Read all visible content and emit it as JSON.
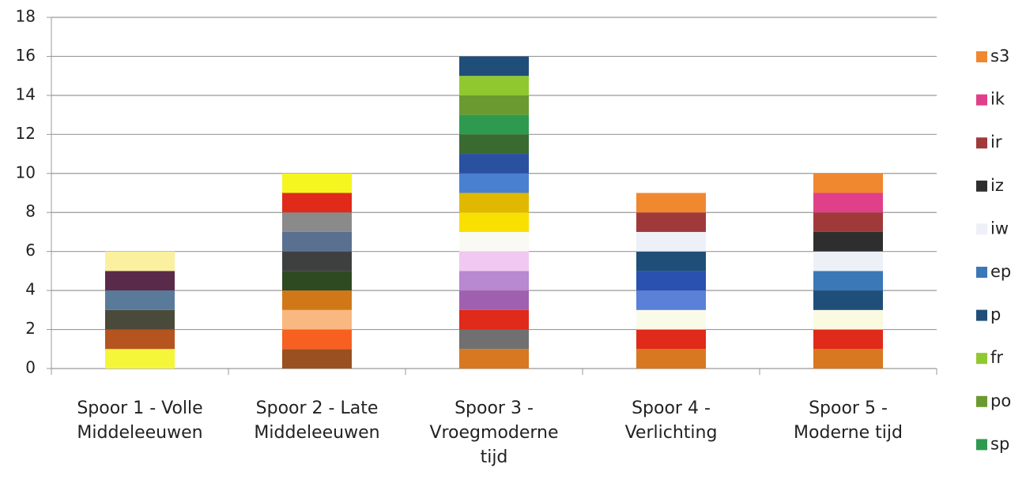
{
  "chart_data": {
    "type": "stacked-bar",
    "categories": [
      [
        "Spoor 1 - Volle",
        "Middeleeuwen"
      ],
      [
        "Spoor 2 - Late",
        "Middeleeuwen"
      ],
      [
        "Spoor 3 -",
        "Vroegmoderne",
        "tijd"
      ],
      [
        "Spoor 4 -",
        "Verlichting"
      ],
      [
        "Spoor 5 -",
        "Moderne tijd"
      ]
    ],
    "stacks": [
      {
        "values": [
          1,
          1,
          1,
          1,
          1,
          1
        ],
        "colors": [
          "#f5f53a",
          "#b5541f",
          "#4a4a3a",
          "#5a7a9a",
          "#5a2a4a",
          "#faf0a0"
        ]
      },
      {
        "values": [
          1,
          1,
          1,
          1,
          1,
          1,
          1,
          1,
          1,
          1
        ],
        "colors": [
          "#9a5020",
          "#f76020",
          "#f8b880",
          "#d07818",
          "#2e4a20",
          "#3e4040",
          "#5a7090",
          "#8a8a8a",
          "#e02a1a",
          "#f5f520"
        ]
      },
      {
        "values": [
          1,
          1,
          1,
          1,
          1,
          1,
          1,
          1,
          1,
          1,
          1,
          1,
          1,
          1,
          1,
          1
        ],
        "colors": [
          "#d87820",
          "#707070",
          "#e02a1a",
          "#a060b0",
          "#b888d0",
          "#f0c8f0",
          "#fafaf4",
          "#f8e000",
          "#e0b800",
          "#4a80d0",
          "#2a50a0",
          "#3a6a30",
          "#2e9a50",
          "#6a9a30",
          "#90c830",
          "#1f4e79"
        ]
      },
      {
        "values": [
          1,
          1,
          1,
          1,
          1,
          1,
          1,
          1,
          1
        ],
        "colors": [
          "#d87820",
          "#e02a1a",
          "#fafae8",
          "#5a80d8",
          "#2a50b0",
          "#1f4e79",
          "#eef0f8",
          "#a03a3a",
          "#f08830"
        ]
      },
      {
        "values": [
          1,
          1,
          1,
          1,
          1,
          1,
          1,
          1,
          1,
          1
        ],
        "colors": [
          "#d87820",
          "#e02a1a",
          "#fafae0",
          "#1f4e79",
          "#3a78b8",
          "#eef0f8",
          "#2e2e2e",
          "#a03a3a",
          "#e0408a",
          "#f08830"
        ]
      }
    ],
    "legend": [
      {
        "name": "s3",
        "color": "#f08830"
      },
      {
        "name": "ik",
        "color": "#e0408a"
      },
      {
        "name": "ir",
        "color": "#a03a3a"
      },
      {
        "name": "iz",
        "color": "#2e2e2e"
      },
      {
        "name": "iw",
        "color": "#eef0f8"
      },
      {
        "name": "ep",
        "color": "#3a78b8"
      },
      {
        "name": "p",
        "color": "#1f4e79"
      },
      {
        "name": "fr",
        "color": "#90c830"
      },
      {
        "name": "po",
        "color": "#6a9a30"
      },
      {
        "name": "sp",
        "color": "#2e9a50"
      }
    ],
    "ylim": [
      0,
      18
    ],
    "yticks": [
      0,
      2,
      4,
      6,
      8,
      10,
      12,
      14,
      16,
      18
    ],
    "grid": true
  }
}
